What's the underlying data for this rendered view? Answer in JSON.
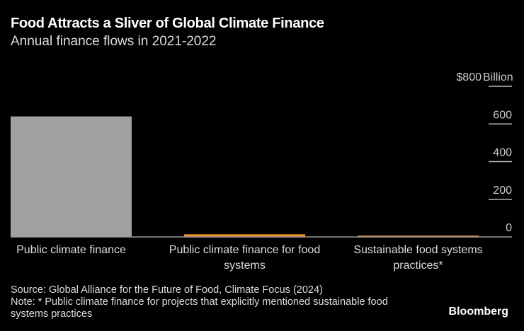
{
  "title": "Food Attracts a Sliver of Global Climate Finance",
  "subtitle": "Annual finance flows in 2021-2022",
  "source": "Source: Global Alliance for the Future of Food, Climate Focus (2024)",
  "note": "Note: * Public climate finance for projects that explicitly mentioned sustainable food systems practices",
  "brand": "Bloomberg",
  "chart_data": {
    "type": "bar",
    "categories": [
      [
        "Public climate finance"
      ],
      [
        "Public climate finance for food",
        "systems"
      ],
      [
        "Sustainable food systems",
        "practices*"
      ]
    ],
    "values": [
      640,
      14,
      7
    ],
    "colors": [
      "#a0a0a0",
      "#e8902a",
      "#e8902a"
    ],
    "ylim": [
      0,
      800
    ],
    "yticks": [
      0,
      200,
      400,
      600,
      800
    ],
    "ytick_labels": [
      "0",
      "200",
      "400",
      "600",
      "$800"
    ],
    "yunit": "Billion",
    "axis_position": "right"
  }
}
